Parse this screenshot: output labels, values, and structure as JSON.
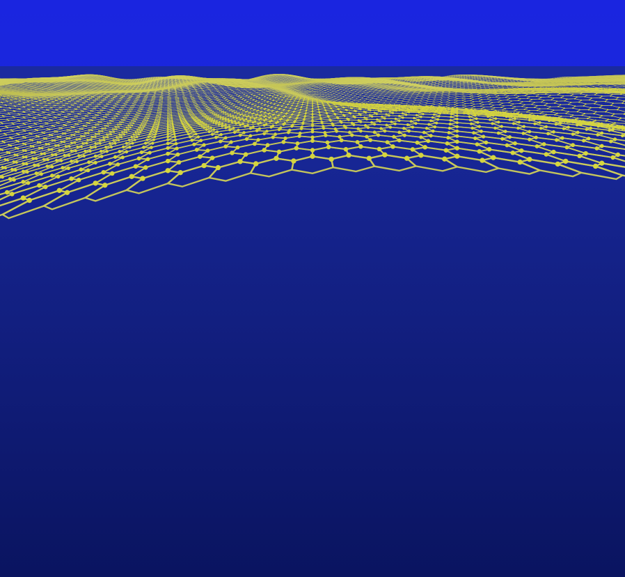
{
  "scene": {
    "subject": "graphene-lattice",
    "colors": {
      "sky_top": "#1a25e0",
      "sky_bottom": "#1530c8",
      "surface_deep": "#0a1460",
      "surface_mid": "#1a2aa0",
      "surface_shadow": "#050a30",
      "lattice": "#e6e63a",
      "lattice_highlight": "#ffff8a",
      "lattice_dark": "#8a8a20",
      "atom": "#f2f24a"
    }
  }
}
